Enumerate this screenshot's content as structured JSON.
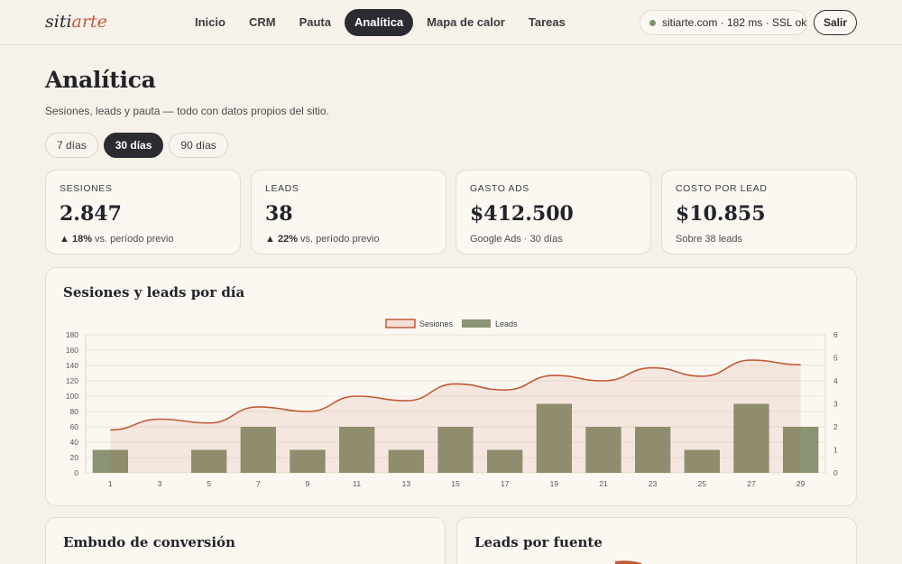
{
  "brand": {
    "prefix": "siti",
    "accent": "arte"
  },
  "nav": {
    "items": [
      {
        "label": "Inicio",
        "active": false
      },
      {
        "label": "CRM",
        "active": false
      },
      {
        "label": "Pauta",
        "active": false
      },
      {
        "label": "Analítica",
        "active": true
      },
      {
        "label": "Mapa de calor",
        "active": false
      },
      {
        "label": "Tareas",
        "active": false
      }
    ]
  },
  "status": {
    "text": "sitiarte.com · 182 ms · SSL ok",
    "dot_color": "#7f9070"
  },
  "logout_label": "Salir",
  "header": {
    "title": "Analítica",
    "subtitle": "Sesiones, leads y pauta — todo con datos propios del sitio."
  },
  "ranges": [
    {
      "label": "7 días",
      "active": false
    },
    {
      "label": "30 días",
      "active": true
    },
    {
      "label": "90 días",
      "active": false
    }
  ],
  "kpis": [
    {
      "label": "SESIONES",
      "value": "2.847",
      "arrow": "▲",
      "delta": "18%",
      "note": "vs. período previo"
    },
    {
      "label": "LEADS",
      "value": "38",
      "arrow": "▲",
      "delta": "22%",
      "note": "vs. período previo"
    },
    {
      "label": "GASTO ADS",
      "value": "$412.500",
      "arrow": "",
      "delta": "",
      "note": "Google Ads · 30 días"
    },
    {
      "label": "COSTO POR LEAD",
      "value": "$10.855",
      "arrow": "",
      "delta": "",
      "note": "Sobre 38 leads"
    }
  ],
  "chart_card_title": "Sesiones y leads por día",
  "chart_data": {
    "type": "bar",
    "categories": [
      "1",
      "3",
      "5",
      "7",
      "9",
      "11",
      "13",
      "15",
      "17",
      "19",
      "21",
      "23",
      "25",
      "27",
      "29"
    ],
    "series": [
      {
        "name": "Sesiones",
        "type": "line",
        "axis": "left",
        "color": "#c25a36",
        "values": [
          56,
          70,
          65,
          86,
          80,
          100,
          94,
          116,
          108,
          127,
          120,
          137,
          126,
          147,
          141
        ]
      },
      {
        "name": "Leads",
        "type": "bar",
        "axis": "right",
        "color": "#8a9474",
        "values": [
          1,
          0,
          1,
          2,
          1,
          2,
          1,
          2,
          1,
          3,
          2,
          2,
          1,
          3,
          2
        ]
      }
    ],
    "y_left": {
      "min": 0,
      "max": 180,
      "ticks": [
        0,
        20,
        40,
        60,
        80,
        100,
        120,
        140,
        160,
        180
      ]
    },
    "y_right": {
      "min": 0,
      "max": 6,
      "ticks": [
        0,
        1,
        2,
        3,
        4,
        5,
        6
      ]
    },
    "legend": "top-center",
    "grid": true
  },
  "bottom_cards": [
    {
      "title": "Embudo de conversión"
    },
    {
      "title": "Leads por fuente"
    }
  ]
}
